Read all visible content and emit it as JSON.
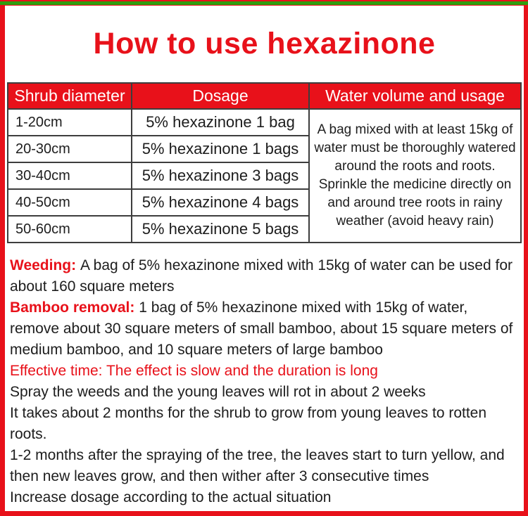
{
  "colors": {
    "accent_red": "#e8111a",
    "green_strip": "#2f9e0f",
    "table_border": "#3d3d3d",
    "text": "#1d1d1d"
  },
  "title": "How to use hexazinone",
  "table": {
    "headers": [
      "Shrub diameter",
      "Dosage",
      "Water volume and usage"
    ],
    "rows": [
      {
        "diameter": "1-20cm",
        "dosage": "5% hexazinone 1 bag"
      },
      {
        "diameter": "20-30cm",
        "dosage": "5% hexazinone 1 bags"
      },
      {
        "diameter": "30-40cm",
        "dosage": "5% hexazinone 3 bags"
      },
      {
        "diameter": "40-50cm",
        "dosage": "5% hexazinone 4 bags"
      },
      {
        "diameter": "50-60cm",
        "dosage": "5% hexazinone 5 bags"
      }
    ],
    "water_usage": "A bag mixed with at least 15kg of water must be thoroughly watered around the roots and roots. Sprinkle the medicine directly on and around tree roots in rainy weather (avoid heavy rain)"
  },
  "notes": [
    {
      "label": "Weeding: ",
      "text": "A bag of 5% hexazinone mixed with 15kg of water can be used for about 160 square meters"
    },
    {
      "label": "Bamboo removal: ",
      "text": "1 bag of 5% hexazinone mixed with 15kg of water, remove about 30 square meters of small bamboo, about 15 square meters of medium bamboo, and 10 square meters of large bamboo"
    },
    {
      "label": "",
      "text": "Effective time: The effect is slow and the duration is long"
    },
    {
      "label": "",
      "text": "Spray the weeds and the young leaves will rot in about 2 weeks"
    },
    {
      "label": "",
      "text": "It takes about 2 months for the shrub to grow from young leaves to rotten roots."
    },
    {
      "label": "",
      "text": "1-2 months after the spraying of the tree, the leaves start to turn yellow, and then new leaves grow, and then wither after 3 consecutive times"
    },
    {
      "label": "",
      "text": "Increase dosage according to the actual situation"
    }
  ]
}
